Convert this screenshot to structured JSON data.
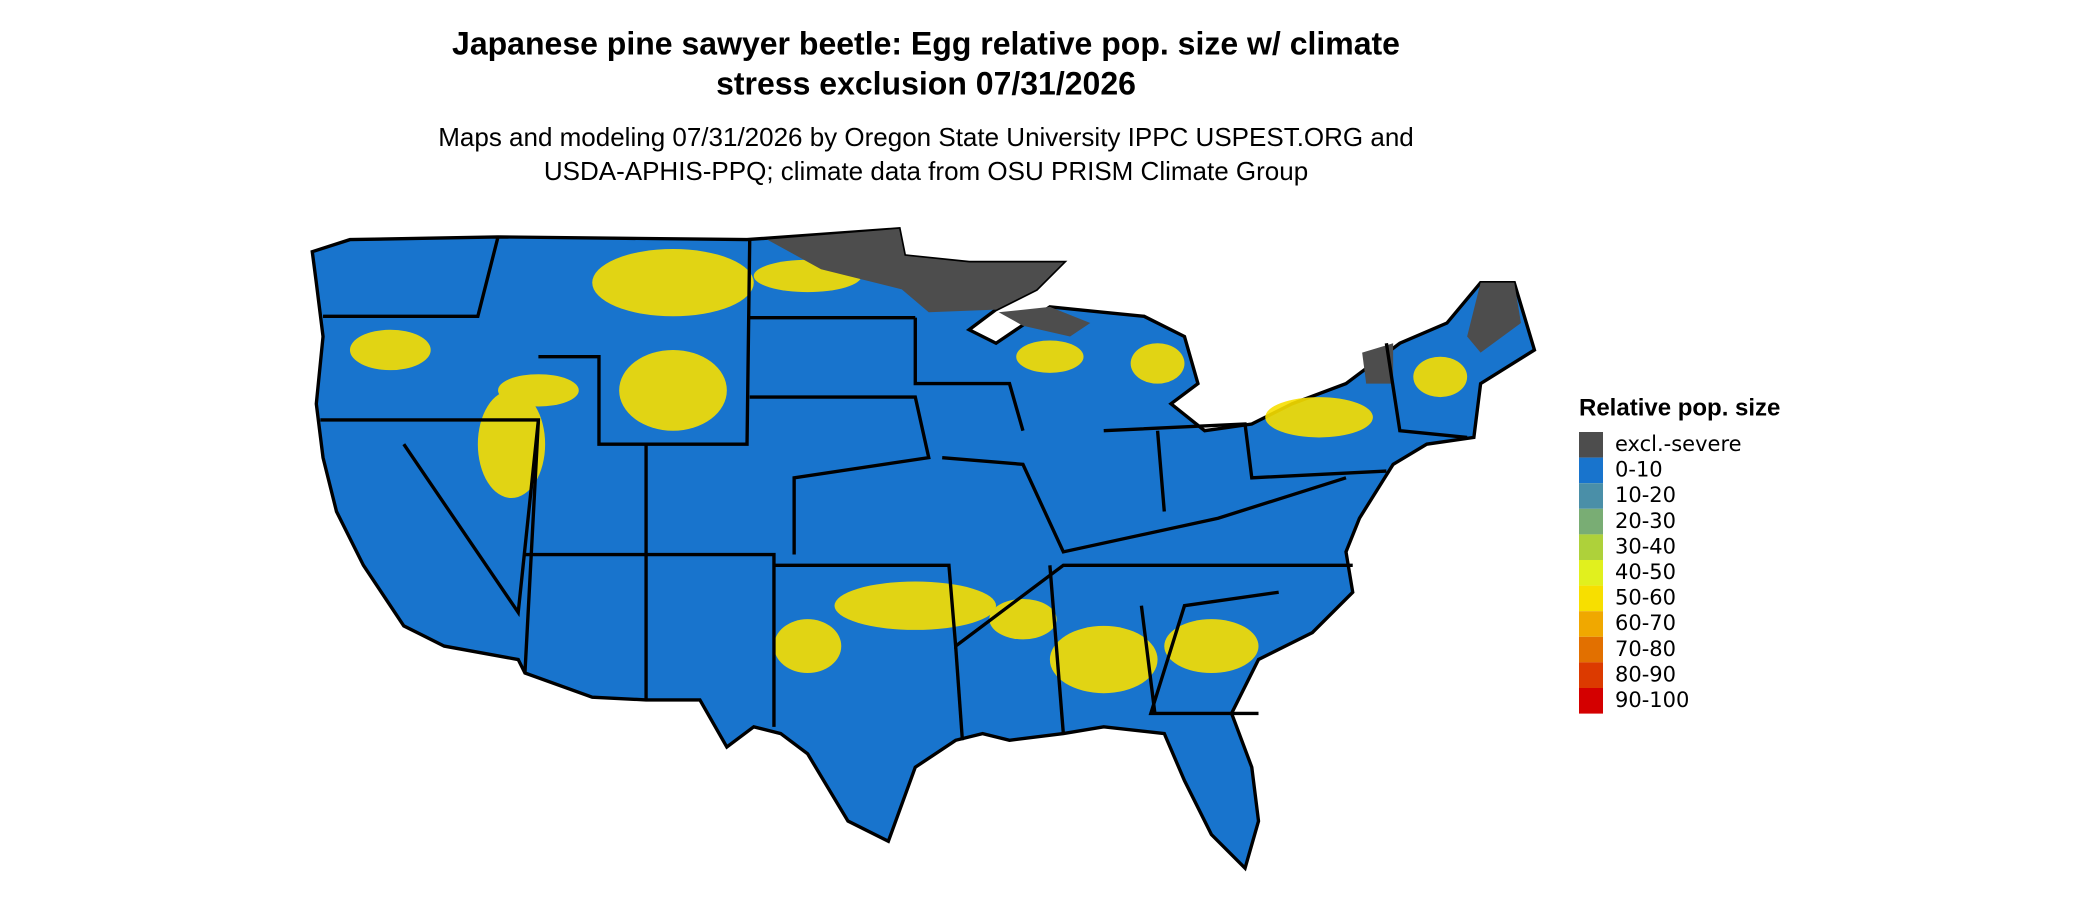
{
  "title_lines": [
    "Japanese pine sawyer beetle: Egg relative pop. size w/ climate",
    "stress exclusion 07/31/2026"
  ],
  "subtitle_lines": [
    "Maps and modeling 07/31/2026 by Oregon State University IPPC USPEST.ORG and",
    "USDA-APHIS-PPQ; climate data from OSU PRISM Climate Group"
  ],
  "legend": {
    "title": "Relative pop. size",
    "items": [
      {
        "label": "excl.-severe",
        "color": "#4d4d4d"
      },
      {
        "label": "0-10",
        "color": "#1874cd"
      },
      {
        "label": "10-20",
        "color": "#4a8fa8"
      },
      {
        "label": "20-30",
        "color": "#79ad74"
      },
      {
        "label": "30-40",
        "color": "#aed13a"
      },
      {
        "label": "40-50",
        "color": "#e1f01e"
      },
      {
        "label": "50-60",
        "color": "#f7df00"
      },
      {
        "label": "60-70",
        "color": "#f0a800"
      },
      {
        "label": "70-80",
        "color": "#e27000"
      },
      {
        "label": "80-90",
        "color": "#dc3a00"
      },
      {
        "label": "90-100",
        "color": "#d40000"
      }
    ]
  }
}
